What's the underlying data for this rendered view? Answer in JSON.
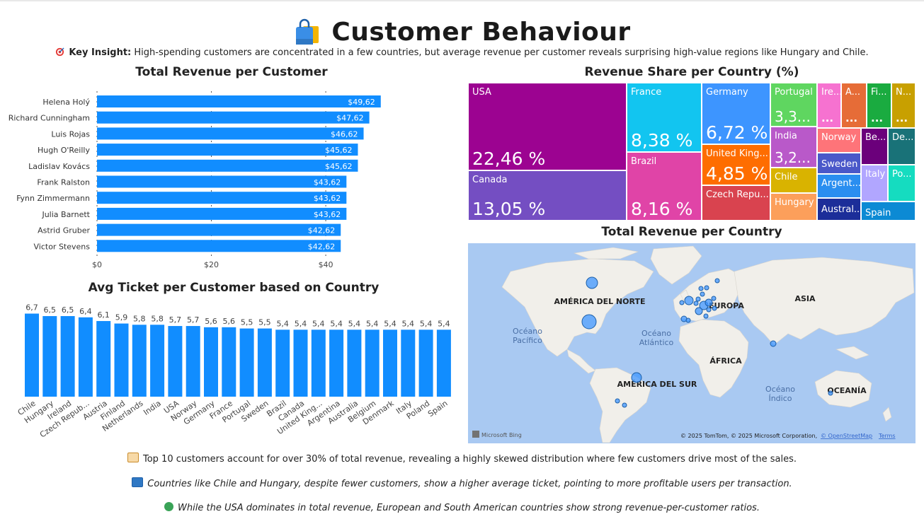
{
  "header": {
    "title": "Customer Behaviour",
    "icon": "shopping-bag-icon",
    "insight_label": "Key Insight:",
    "insight_text": " High-spending customers are concentrated in a few countries, but average revenue per customer reveals surprising high-value regions like Hungary and Chile."
  },
  "colors": {
    "bar": "#118dff",
    "text": "#222222",
    "map_land": "#f1efea",
    "map_water": "#a9c9f2"
  },
  "chart_data": [
    {
      "type": "bar",
      "orientation": "horizontal",
      "title": "Total Revenue per Customer",
      "categories": [
        "Helena Holý",
        "Richard Cunningham",
        "Luis Rojas",
        "Hugh O'Reilly",
        "Ladislav Kovács",
        "Frank Ralston",
        "Fynn Zimmermann",
        "Julia Barnett",
        "Astrid Gruber",
        "Victor Stevens"
      ],
      "values": [
        49.62,
        47.62,
        46.62,
        45.62,
        45.62,
        43.62,
        43.62,
        43.62,
        42.62,
        42.62
      ],
      "data_labels": [
        "$49,62",
        "$47,62",
        "$46,62",
        "$45,62",
        "$45,62",
        "$43,62",
        "$43,62",
        "$43,62",
        "$42,62",
        "$42,62"
      ],
      "x_ticks": [
        "$0",
        "$20",
        "$40"
      ],
      "xlim": [
        0,
        52
      ],
      "grid": true
    },
    {
      "type": "bar",
      "title": "Avg Ticket per Customer based on Country",
      "categories": [
        "Chile",
        "Hungary",
        "Ireland",
        "Czech Repub...",
        "Austria",
        "Finland",
        "Netherlands",
        "India",
        "USA",
        "Norway",
        "Germany",
        "France",
        "Portugal",
        "Sweden",
        "Brazil",
        "Canada",
        "United King...",
        "Argentina",
        "Australia",
        "Belgium",
        "Denmark",
        "Italy",
        "Poland",
        "Spain"
      ],
      "values": [
        6.7,
        6.5,
        6.5,
        6.4,
        6.1,
        5.9,
        5.8,
        5.8,
        5.7,
        5.7,
        5.6,
        5.6,
        5.5,
        5.5,
        5.4,
        5.4,
        5.4,
        5.4,
        5.4,
        5.4,
        5.4,
        5.4,
        5.4,
        5.4
      ],
      "data_labels": [
        "6,7",
        "6,5",
        "6,5",
        "6,4",
        "6,1",
        "5,9",
        "5,8",
        "5,8",
        "5,7",
        "5,7",
        "5,6",
        "5,6",
        "5,5",
        "5,5",
        "5,4",
        "5,4",
        "5,4",
        "5,4",
        "5,4",
        "5,4",
        "5,4",
        "5,4",
        "5,4",
        "5,4"
      ],
      "ylim": [
        0,
        7.3
      ]
    },
    {
      "type": "treemap",
      "title": "Revenue Share per Country (%)",
      "cells": [
        {
          "name": "USA",
          "value": "22,46 %",
          "color": "#9c0391"
        },
        {
          "name": "Canada",
          "value": "13,05 %",
          "color": "#744ec2"
        },
        {
          "name": "France",
          "value": "8,38 %",
          "color": "#12c5f0"
        },
        {
          "name": "Brazil",
          "value": "8,16 %",
          "color": "#e044a7"
        },
        {
          "name": "Germany",
          "value": "6,72 %",
          "color": "#3d95ff"
        },
        {
          "name": "United King...",
          "value": "4,85 %",
          "color": "#fe6d00"
        },
        {
          "name": "Czech Repu...",
          "value": "",
          "color": "#d9434f"
        },
        {
          "name": "Portugal",
          "value": "3,3...",
          "color": "#5fd660"
        },
        {
          "name": "India",
          "value": "3,2...",
          "color": "#b959c9"
        },
        {
          "name": "Chile",
          "value": "",
          "color": "#d9b300"
        },
        {
          "name": "Hungary",
          "value": "",
          "color": "#fc9f5b"
        },
        {
          "name": "Ire...",
          "value": "...",
          "color": "#f672d0"
        },
        {
          "name": "A...",
          "value": "...",
          "color": "#e66c37"
        },
        {
          "name": "Fi...",
          "value": "...",
          "color": "#1aab40"
        },
        {
          "name": "N...",
          "value": "...",
          "color": "#c8a000"
        },
        {
          "name": "Norway",
          "value": "",
          "color": "#fe7479"
        },
        {
          "name": "Be...",
          "value": "",
          "color": "#6b007b"
        },
        {
          "name": "De...",
          "value": "",
          "color": "#197278"
        },
        {
          "name": "Sweden",
          "value": "",
          "color": "#4a58c9"
        },
        {
          "name": "Argent...",
          "value": "",
          "color": "#2a8ef0"
        },
        {
          "name": "Italy",
          "value": "",
          "color": "#b1a6ff"
        },
        {
          "name": "Po...",
          "value": "",
          "color": "#15dcc0"
        },
        {
          "name": "Austral...",
          "value": "",
          "color": "#1c2e99"
        },
        {
          "name": "Spain",
          "value": "",
          "color": "#0c8ad4"
        }
      ]
    }
  ],
  "map": {
    "title": "Total Revenue per Country",
    "labels": {
      "na": "AMÉRICA DEL NORTE",
      "sa": "AMÉRICA DEL SUR",
      "eu": "EUROPA",
      "asia": "ASIA",
      "africa": "ÁFRICA",
      "oceania": "OCEANÍA",
      "pacific": [
        "Océano",
        "Pacífico"
      ],
      "atlantic": [
        "Océano",
        "Atlántico"
      ],
      "indian": [
        "Océano",
        "Índico"
      ]
    },
    "bing": "Microsoft Bing",
    "attribution": "© 2025 TomTom, © 2025 Microsoft Corporation,",
    "osm": "© OpenStreetMap",
    "terms": "Terms"
  },
  "notes": [
    {
      "icon": "memo-icon",
      "text": "Top 10 customers account for over 30% of total revenue, revealing a highly skewed distribution where few customers drive most of the sales."
    },
    {
      "icon": "credit-card-icon",
      "text": "Countries like Chile and Hungary, despite fewer customers, show a higher average ticket, pointing to more profitable users per transaction."
    },
    {
      "icon": "globe-icon",
      "text": "While the USA dominates in total revenue, European and South American countries show strong revenue-per-customer ratios."
    }
  ]
}
